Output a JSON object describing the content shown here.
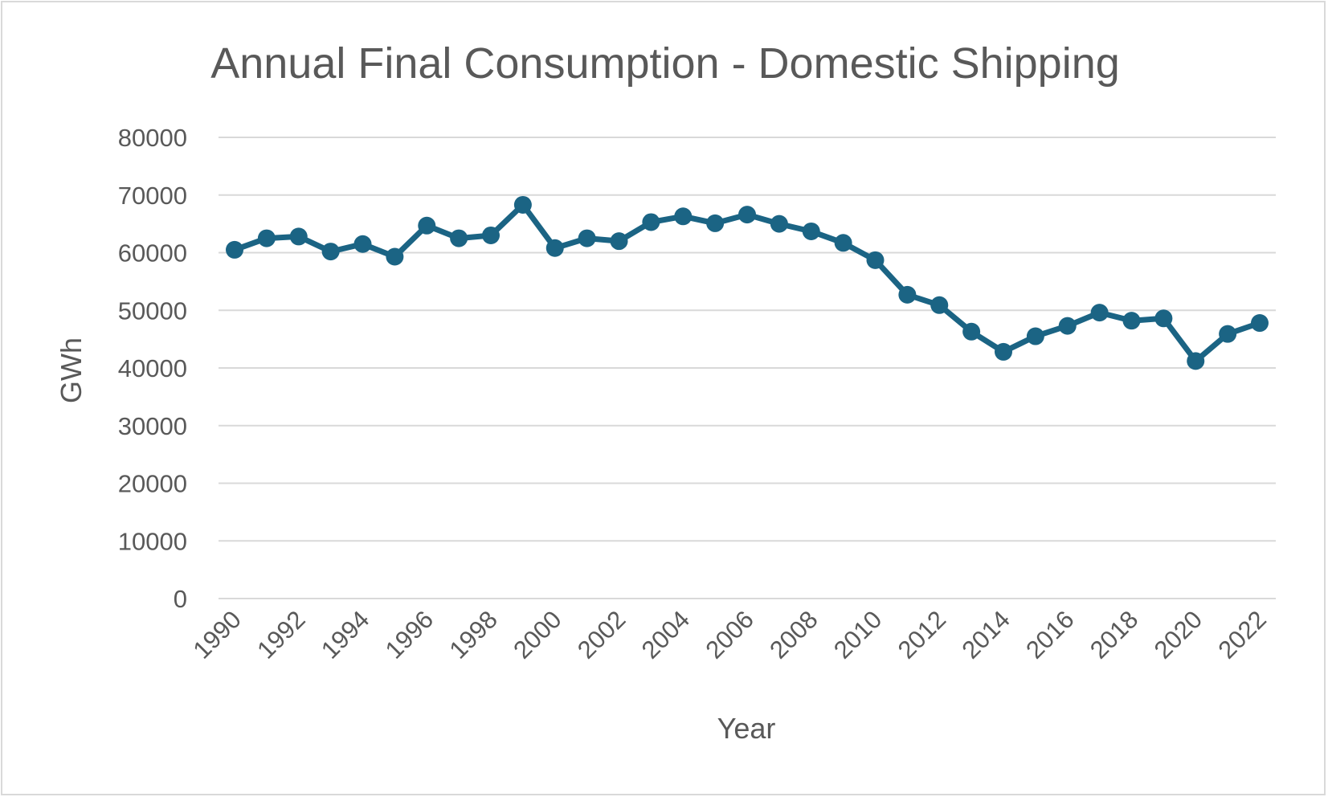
{
  "chart_data": {
    "type": "line",
    "title": "Annual Final Consumption - Domestic Shipping",
    "xlabel": "Year",
    "ylabel": "GWh",
    "ylim": [
      0,
      80000
    ],
    "ytick_step": 10000,
    "yticks": [
      "0",
      "10000",
      "20000",
      "30000",
      "40000",
      "50000",
      "60000",
      "70000",
      "80000"
    ],
    "x_tick_labels": [
      "1990",
      "1992",
      "1994",
      "1996",
      "1998",
      "2000",
      "2002",
      "2004",
      "2006",
      "2008",
      "2010",
      "2012",
      "2014",
      "2016",
      "2018",
      "2020",
      "2022"
    ],
    "grid": true,
    "legend": "none",
    "line_color": "#1b6484",
    "gridline_color": "#d9d9d9",
    "series": [
      {
        "name": "Domestic Shipping",
        "x": [
          1990,
          1991,
          1992,
          1993,
          1994,
          1995,
          1996,
          1997,
          1998,
          1999,
          2000,
          2001,
          2002,
          2003,
          2004,
          2005,
          2006,
          2007,
          2008,
          2009,
          2010,
          2011,
          2012,
          2013,
          2014,
          2015,
          2016,
          2017,
          2018,
          2019,
          2020,
          2021,
          2022
        ],
        "values": [
          60500,
          62500,
          62800,
          60200,
          61500,
          59300,
          64700,
          62500,
          63000,
          68300,
          60800,
          62500,
          62000,
          65300,
          66300,
          65100,
          66600,
          65000,
          63700,
          61700,
          58700,
          52700,
          50900,
          46300,
          42800,
          45500,
          47300,
          49600,
          48200,
          48600,
          41200,
          45900,
          47800
        ]
      }
    ]
  }
}
